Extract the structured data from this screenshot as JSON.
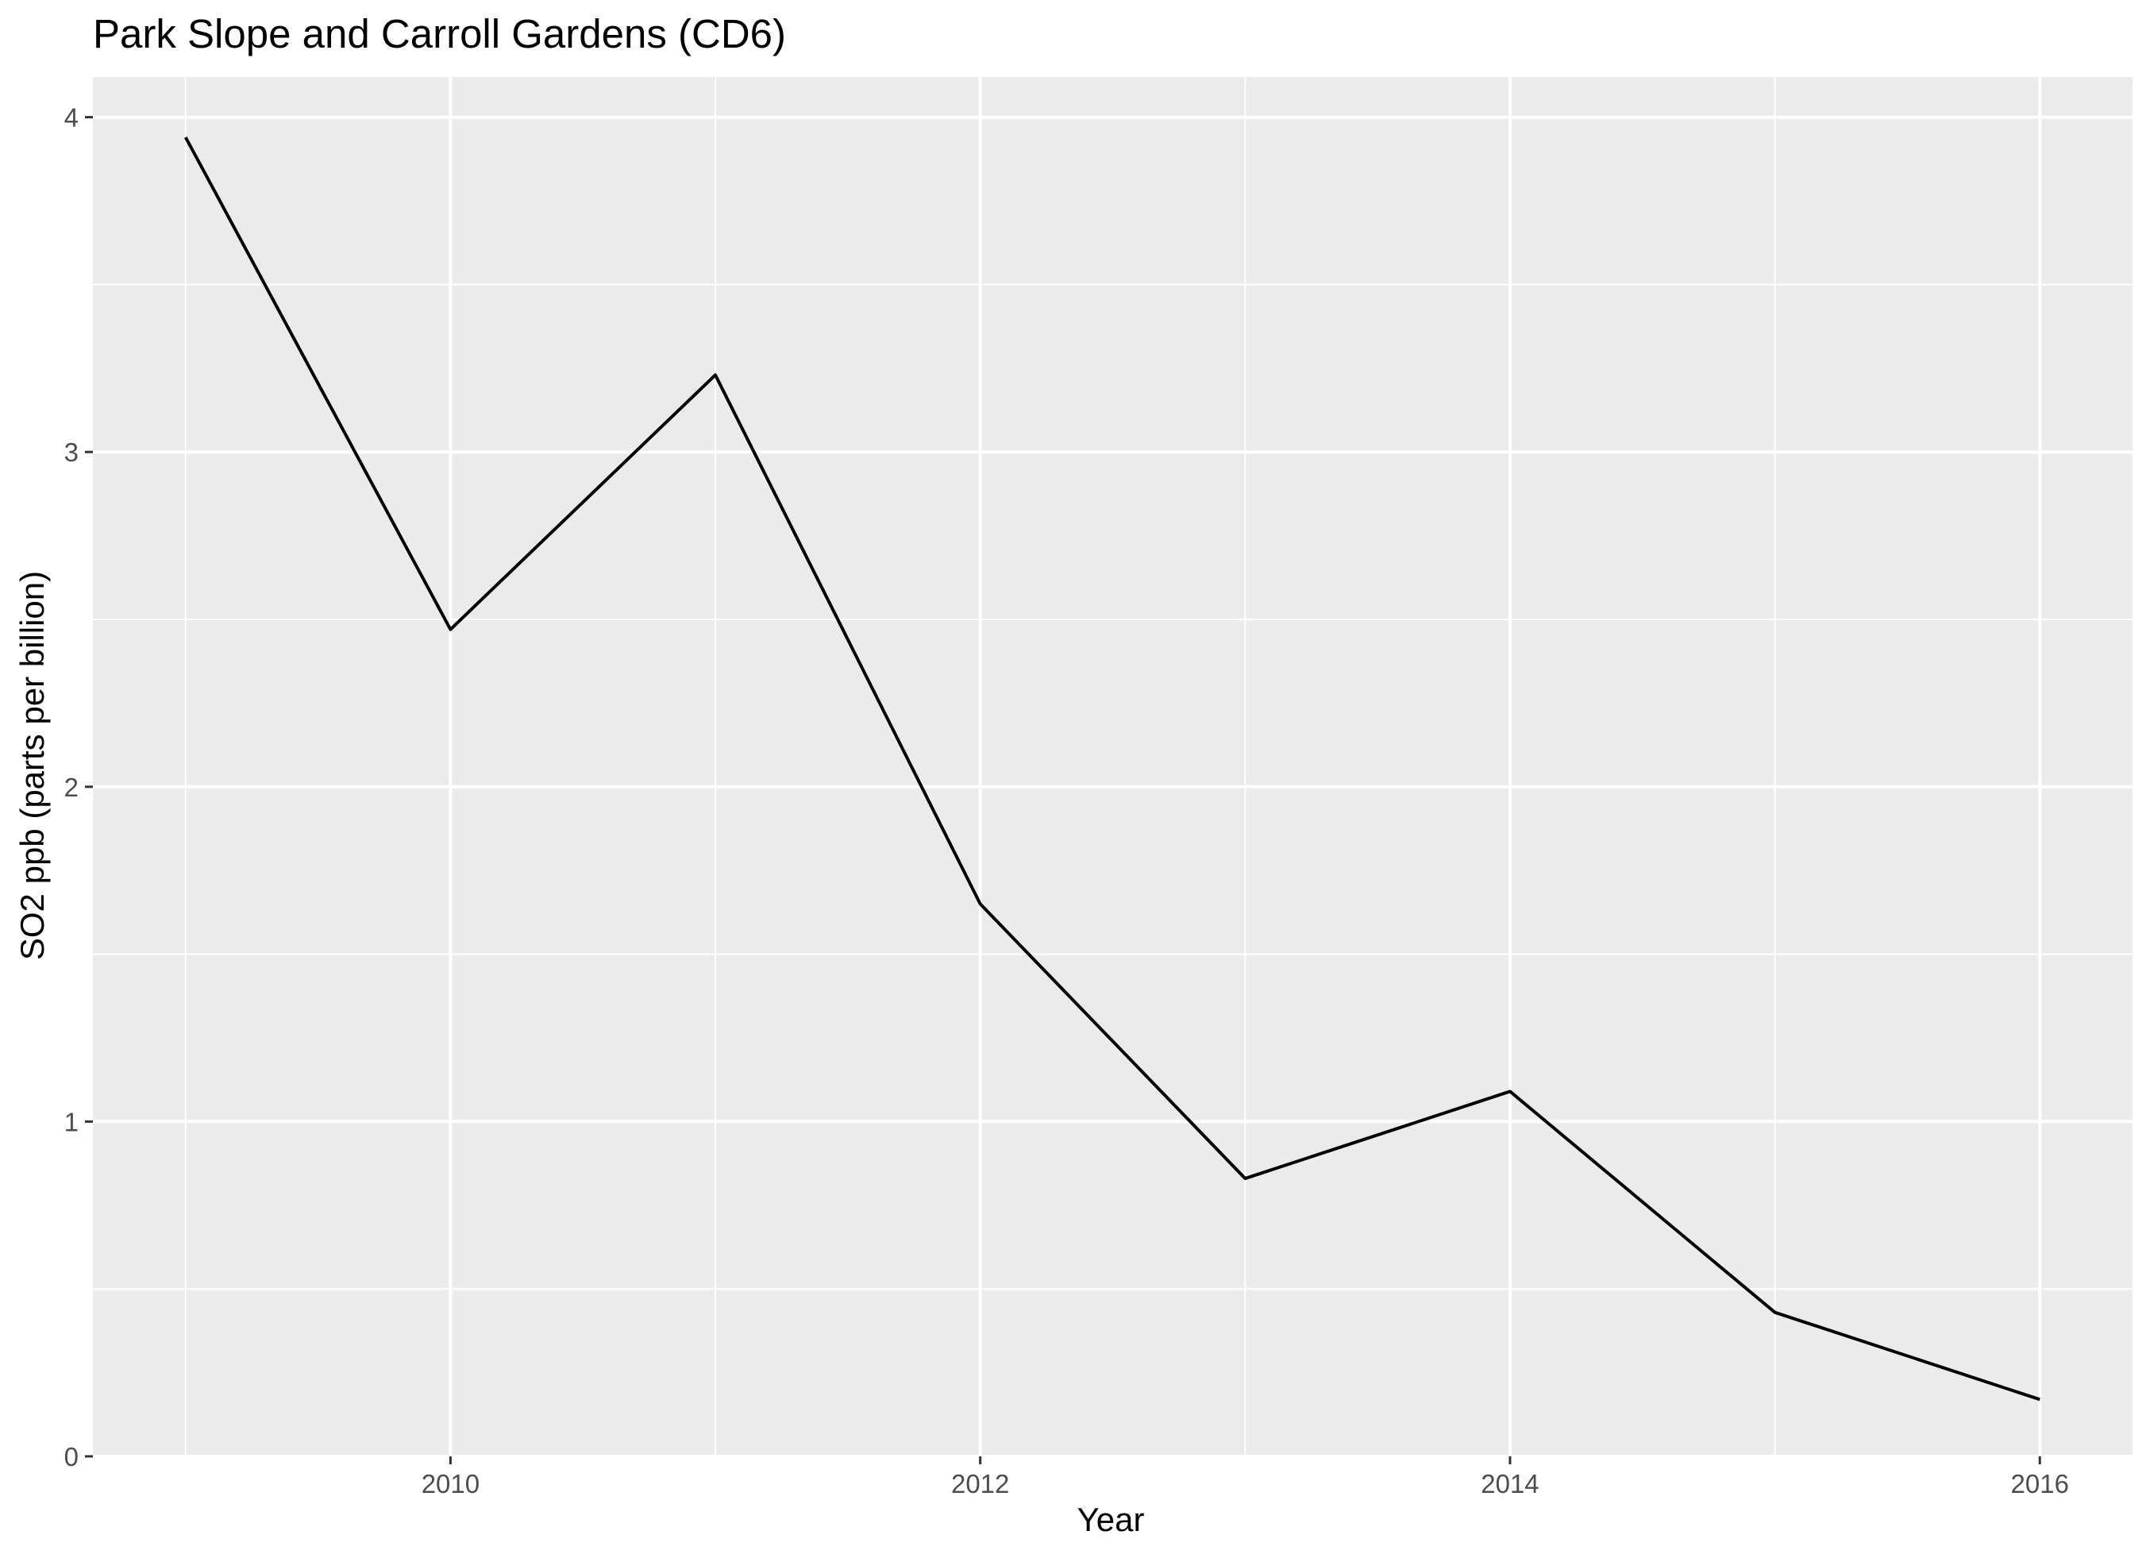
{
  "chart_data": {
    "type": "line",
    "title": "Park Slope and Carroll Gardens (CD6)",
    "xlabel": "Year",
    "ylabel": "SO2 ppb (parts per billion)",
    "x": [
      2009,
      2010,
      2011,
      2012,
      2013,
      2014,
      2015,
      2016
    ],
    "series": [
      {
        "values": [
          3.94,
          2.47,
          3.23,
          1.65,
          0.83,
          1.09,
          0.43,
          0.17
        ]
      }
    ],
    "xlim": [
      2008.65,
      2016.35
    ],
    "ylim": [
      0,
      4.12
    ],
    "x_ticks": [
      2010,
      2012,
      2014,
      2016
    ],
    "x_tick_labels": [
      "2010",
      "2012",
      "2014",
      "2016"
    ],
    "x_minor_ticks": [
      2009,
      2011,
      2013,
      2015
    ],
    "y_ticks": [
      0,
      1,
      2,
      3,
      4
    ],
    "y_tick_labels": [
      "0",
      "1",
      "2",
      "3",
      "4"
    ],
    "y_minor_ticks": [
      0.5,
      1.5,
      2.5,
      3.5
    ],
    "grid": true,
    "legend": "none",
    "colors": {
      "panel_background": "#ebebeb",
      "grid": "#ffffff",
      "line": "#000000",
      "tick_text": "#4d4d4d",
      "tick_mark": "#333333",
      "text": "#000000"
    }
  }
}
